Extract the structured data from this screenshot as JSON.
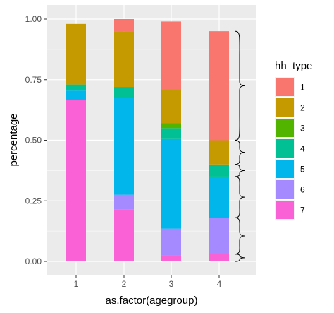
{
  "chart_data": {
    "type": "bar",
    "stacked": true,
    "xlabel": "as.factor(agegroup)",
    "ylabel": "percentage",
    "ylim": [
      0,
      1
    ],
    "yticks": [
      "0.00",
      "0.25",
      "0.50",
      "0.75",
      "1.00"
    ],
    "ytick_values": [
      0,
      0.25,
      0.5,
      0.75,
      1.0
    ],
    "categories": [
      "1",
      "2",
      "3",
      "4"
    ],
    "grid": true,
    "legend": {
      "title": "hh_type",
      "position": "right"
    },
    "series": [
      {
        "name": "1",
        "color": "#F8766D",
        "values": [
          0.0,
          0.05,
          0.28,
          0.45
        ]
      },
      {
        "name": "2",
        "color": "#C49A00",
        "values": [
          0.25,
          0.23,
          0.14,
          0.1
        ]
      },
      {
        "name": "3",
        "color": "#53B400",
        "values": [
          0.0,
          0.0,
          0.02,
          0.0
        ]
      },
      {
        "name": "4",
        "color": "#00C094",
        "values": [
          0.025,
          0.045,
          0.045,
          0.05
        ]
      },
      {
        "name": "5",
        "color": "#00B6EB",
        "values": [
          0.04,
          0.4,
          0.37,
          0.17
        ]
      },
      {
        "name": "6",
        "color": "#A58AFF",
        "values": [
          0.0,
          0.06,
          0.11,
          0.15
        ]
      },
      {
        "name": "7",
        "color": "#FB61D7",
        "values": [
          0.665,
          0.215,
          0.025,
          0.03
        ]
      }
    ],
    "annotation": "curly braces marking segment extents of category 4"
  }
}
